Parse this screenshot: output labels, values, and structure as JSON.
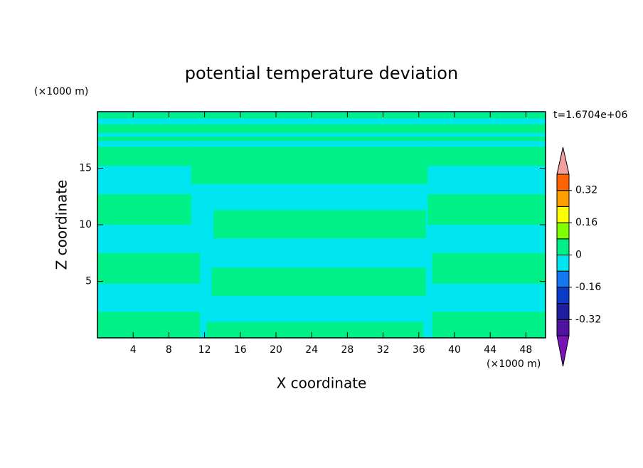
{
  "chart_data": {
    "type": "contourf",
    "title": "potential temperature deviation",
    "x_label": "X coordinate",
    "y_label": "Z coordinate",
    "x_unit": "(×1000 m)",
    "y_unit": "(×1000 m)",
    "annotation": "t=1.6704e+06",
    "xlim": [
      0,
      50.2
    ],
    "xticks": [
      4,
      8,
      12,
      16,
      20,
      24,
      28,
      32,
      36,
      40,
      44,
      48
    ],
    "ylim": [
      0,
      20
    ],
    "yticks": [
      5,
      10,
      15
    ],
    "background_level": -0.08,
    "regions": [
      {
        "x": [
          0,
          11.5
        ],
        "z": [
          0,
          2.3
        ],
        "level": 0
      },
      {
        "x": [
          0,
          11.5
        ],
        "z": [
          4.8,
          7.5
        ],
        "level": 0
      },
      {
        "x": [
          0,
          10.5
        ],
        "z": [
          10,
          12.7
        ],
        "level": 0
      },
      {
        "x": [
          0,
          10.5
        ],
        "z": [
          15.2,
          16.9
        ],
        "level": 0
      },
      {
        "x": [
          12.2,
          36.5
        ],
        "z": [
          0,
          1.4
        ],
        "level": 0
      },
      {
        "x": [
          12.8,
          36.8
        ],
        "z": [
          3.7,
          6.2
        ],
        "level": 0
      },
      {
        "x": [
          13,
          36.8
        ],
        "z": [
          8.8,
          11.3
        ],
        "level": 0
      },
      {
        "x": [
          10.5,
          37
        ],
        "z": [
          13.6,
          16.9
        ],
        "level": 0
      },
      {
        "x": [
          37.5,
          50.2
        ],
        "z": [
          0,
          2.3
        ],
        "level": 0
      },
      {
        "x": [
          37.5,
          50.2
        ],
        "z": [
          4.8,
          7.5
        ],
        "level": 0
      },
      {
        "x": [
          37,
          50.2
        ],
        "z": [
          10,
          12.7
        ],
        "level": 0
      },
      {
        "x": [
          37,
          50.2
        ],
        "z": [
          15.2,
          16.9
        ],
        "level": 0
      },
      {
        "x": [
          0,
          50.2
        ],
        "z": [
          17.4,
          17.8
        ],
        "level": 0
      },
      {
        "x": [
          0,
          50.2
        ],
        "z": [
          18.1,
          18.9
        ],
        "level": 0
      },
      {
        "x": [
          0,
          50.2
        ],
        "z": [
          19.4,
          19.9
        ],
        "level": 0
      }
    ],
    "colorbar": {
      "bounds": [
        -0.4,
        -0.32,
        -0.24,
        -0.16,
        -0.08,
        0,
        0.08,
        0.16,
        0.24,
        0.32,
        0.4
      ],
      "colors": [
        "#5014a0",
        "#1e1ea0",
        "#0a3cc8",
        "#1478f0",
        "#00e6f0",
        "#00f088",
        "#80ff00",
        "#ffff00",
        "#ffa000",
        "#ff6400",
        "#ff2020"
      ],
      "under_color": "#7814b4",
      "over_color": "#f0a0a0",
      "ticks": [
        -0.32,
        -0.16,
        0,
        0.16,
        0.32
      ]
    }
  }
}
